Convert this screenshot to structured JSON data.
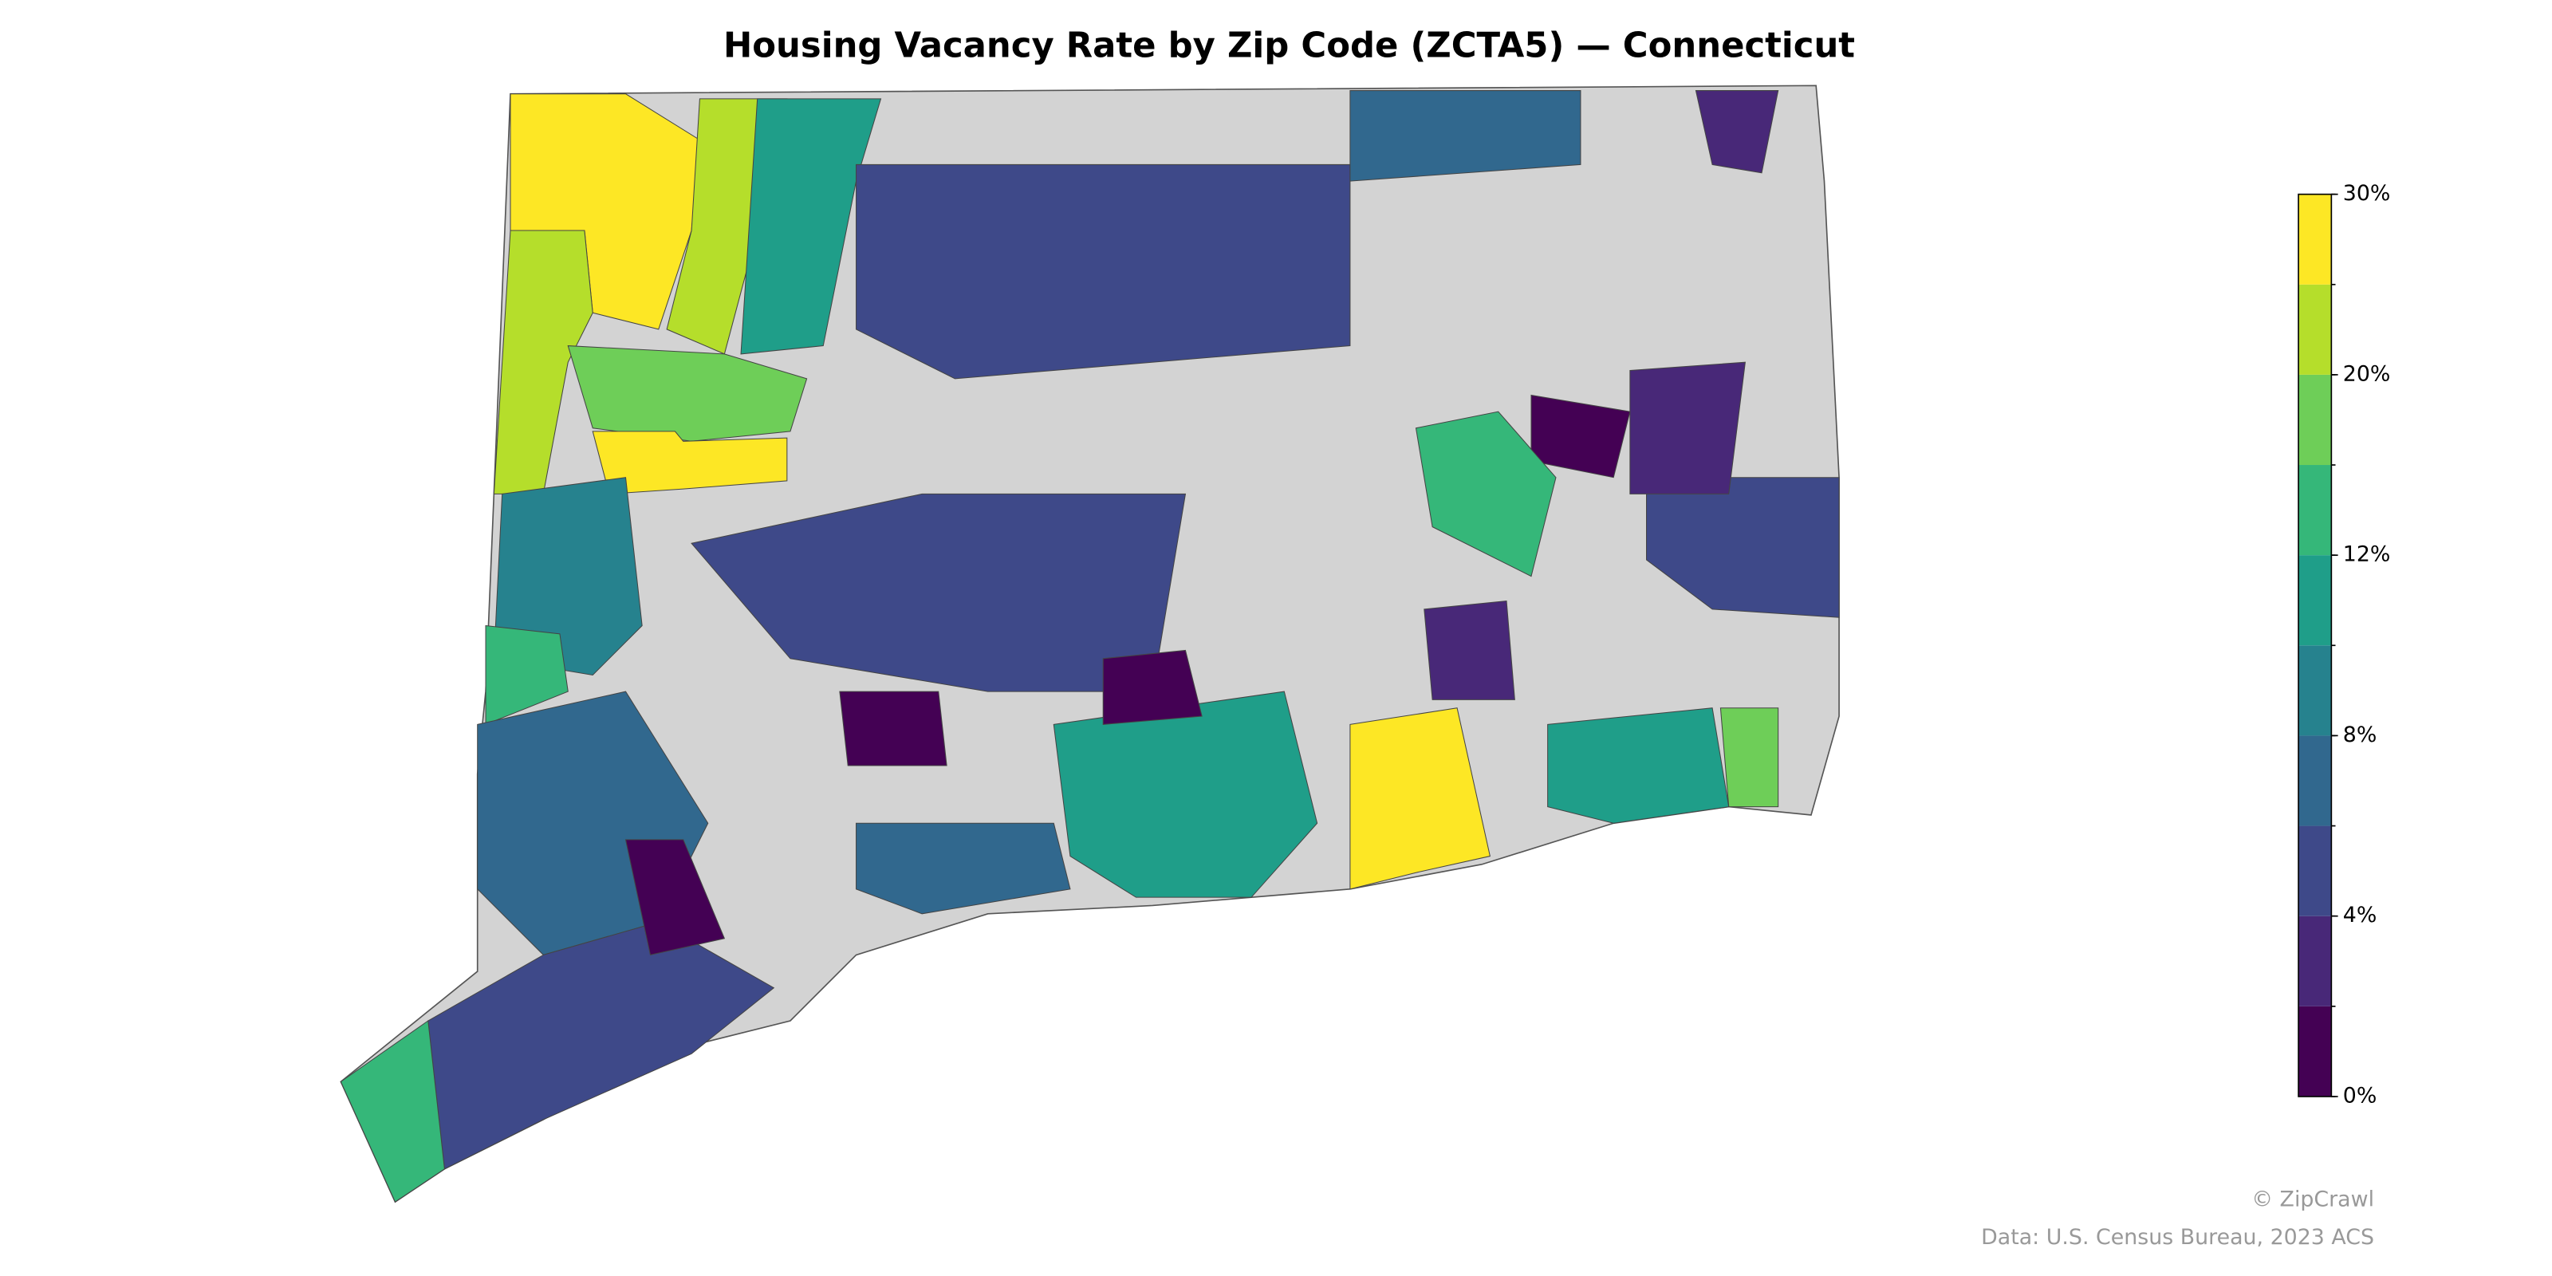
{
  "chart_data": {
    "type": "choropleth",
    "title": "Housing Vacancy Rate by Zip Code (ZCTA5) — Connecticut",
    "no_data_color": "#d3d3d3",
    "regions": {
      "values": [
        28,
        23,
        22,
        18,
        11,
        27,
        9,
        14,
        7,
        5,
        13,
        5,
        5,
        7,
        3,
        5,
        3,
        1,
        13,
        11,
        29,
        11,
        1,
        1,
        1,
        7,
        17,
        3
      ]
    },
    "colorbar": {
      "boundaries": [
        0,
        2,
        4,
        6,
        8,
        10,
        12,
        15,
        20,
        25,
        30
      ],
      "colors": [
        "#440154",
        "#482878",
        "#3e4989",
        "#31688e",
        "#26828e",
        "#1f9e89",
        "#35b779",
        "#6ece58",
        "#b5de2b",
        "#fde725"
      ],
      "ticks": [
        {
          "value": 0,
          "label": "0%"
        },
        {
          "value": 4,
          "label": "4%"
        },
        {
          "value": 8,
          "label": "8%"
        },
        {
          "value": 12,
          "label": "12%"
        },
        {
          "value": 20,
          "label": "20%"
        },
        {
          "value": 30,
          "label": "30%"
        }
      ]
    },
    "credits": [
      "© ZipCrawl",
      "Data: U.S. Census Bureau, 2023 ACS"
    ]
  }
}
